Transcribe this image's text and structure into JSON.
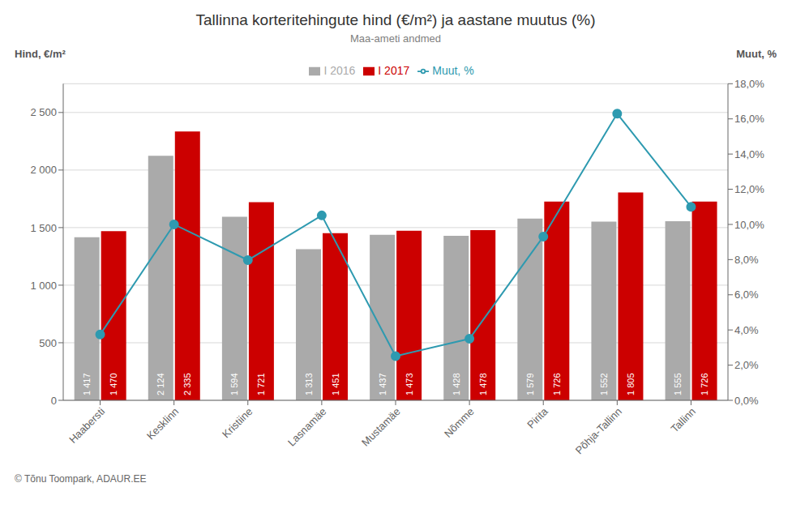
{
  "chart_data": {
    "type": "bar",
    "title": "Tallinna korteritehingute hind (€/m²) ja aastane muutus (%)",
    "subtitle": "Maa-ameti andmed",
    "ylabel": "Hind, €/m²",
    "y2label": "Muut, %",
    "categories": [
      "Haabersti",
      "Kesklinn",
      "Kristiine",
      "Lasnamäe",
      "Mustamäe",
      "Nõmme",
      "Pirita",
      "Põhja-Tallinn",
      "Tallinn"
    ],
    "series": [
      {
        "name": "I 2016",
        "type": "bar",
        "color": "#aaaaaa",
        "values": [
          1417,
          2124,
          1594,
          1313,
          1437,
          1428,
          1579,
          1552,
          1555
        ],
        "value_labels": [
          "1 417",
          "2 124",
          "1 594",
          "1 313",
          "1 437",
          "1 428",
          "1 579",
          "1 552",
          "1 555"
        ],
        "data_labels": true
      },
      {
        "name": "I 2017",
        "type": "bar",
        "color": "#cc0000",
        "values": [
          1470,
          2335,
          1721,
          1451,
          1473,
          1478,
          1726,
          1805,
          1726
        ],
        "value_labels": [
          "1 470",
          "2 335",
          "1 721",
          "1 451",
          "1 473",
          "1 478",
          "1 726",
          "1 805",
          "1 726"
        ],
        "data_labels": true
      },
      {
        "name": "Muut, %",
        "type": "line",
        "axis": "y2",
        "color": "#2e9ab0",
        "marker": "o",
        "values": [
          3.74,
          10.0,
          7.97,
          10.51,
          2.51,
          3.5,
          9.31,
          16.3,
          11.0
        ]
      }
    ],
    "ylim": [
      0,
      2750
    ],
    "yticks": [
      0,
      500,
      {
        "value": 1000,
        "label": "1 000"
      },
      {
        "value": 1500,
        "label": "1 500"
      },
      {
        "value": 2000,
        "label": "2 000"
      },
      {
        "value": 2500,
        "label": "2 500"
      }
    ],
    "y2lim": [
      0,
      18
    ],
    "y2ticks": [
      {
        "value": 0,
        "label": "0,0%"
      },
      {
        "value": 2,
        "label": "2,0%"
      },
      {
        "value": 4,
        "label": "4,0%"
      },
      {
        "value": 6,
        "label": "6,0%"
      },
      {
        "value": 8,
        "label": "8,0%"
      },
      {
        "value": 10,
        "label": "10,0%"
      },
      {
        "value": 12,
        "label": "12,0%"
      },
      {
        "value": 14,
        "label": "14,0%"
      },
      {
        "value": 16,
        "label": "16,0%"
      },
      {
        "value": 18,
        "label": "18,0%"
      }
    ],
    "grid": true,
    "legend": "top",
    "annotations": [
      "© Tõnu Toompark, ADAUR.EE"
    ]
  }
}
